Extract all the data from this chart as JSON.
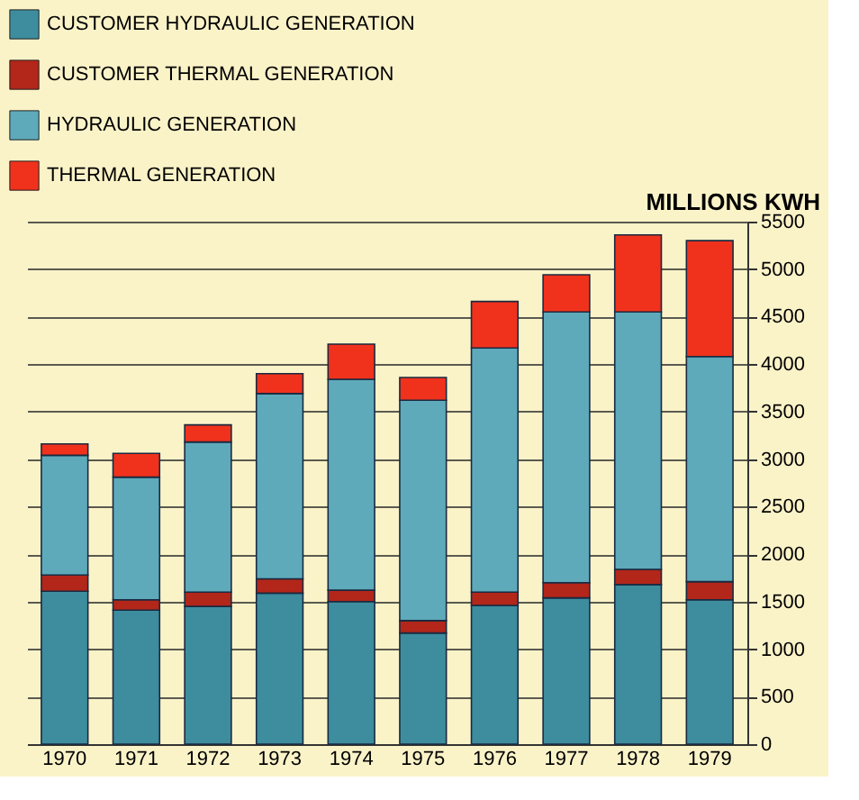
{
  "chart_data": {
    "type": "bar",
    "stacked": true,
    "ylabel": "MILLIONS KWH",
    "categories": [
      "1970",
      "1971",
      "1972",
      "1973",
      "1974",
      "1975",
      "1976",
      "1977",
      "1978",
      "1979"
    ],
    "series": [
      {
        "name": "CUSTOMER HYDRAULIC GENERATION",
        "color": "#3d8d9e",
        "values": [
          1610,
          1410,
          1450,
          1590,
          1500,
          1170,
          1460,
          1540,
          1680,
          1520
        ]
      },
      {
        "name": "CUSTOMER THERMAL GENERATION",
        "color": "#b3261a",
        "values": [
          170,
          110,
          150,
          150,
          120,
          130,
          140,
          160,
          160,
          190
        ]
      },
      {
        "name": "HYDRAULIC GENERATION",
        "color": "#5eaabb",
        "values": [
          1260,
          1290,
          1580,
          1950,
          2220,
          2320,
          2570,
          2850,
          2710,
          2370
        ]
      },
      {
        "name": "THERMAL GENERATION",
        "color": "#f0321c",
        "values": [
          120,
          250,
          180,
          210,
          370,
          240,
          490,
          390,
          810,
          1220
        ]
      }
    ],
    "ylim": [
      0,
      5500
    ],
    "yticks": [
      0,
      500,
      1000,
      1500,
      2000,
      2500,
      3000,
      3500,
      4000,
      4500,
      5000,
      5500
    ],
    "grid": "y",
    "legend": "top left"
  }
}
